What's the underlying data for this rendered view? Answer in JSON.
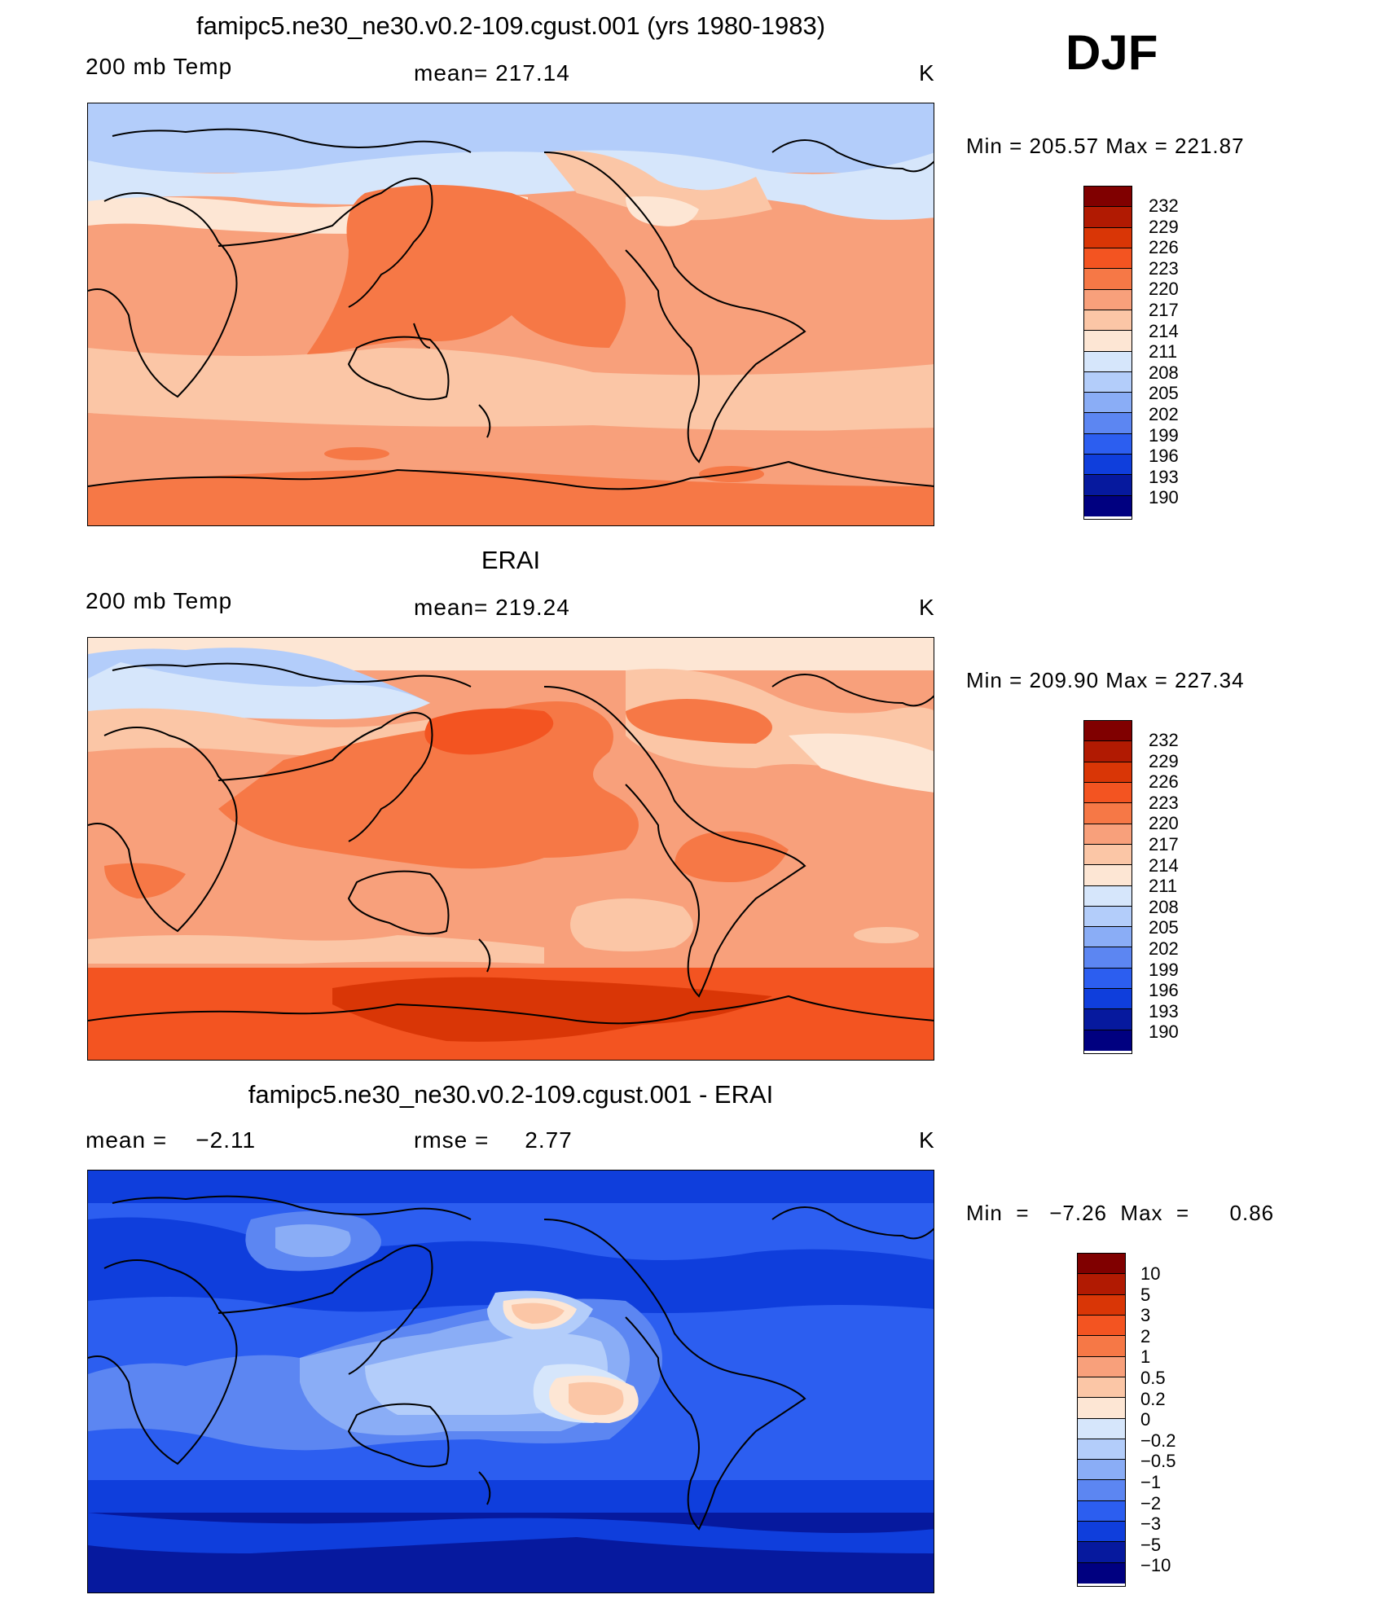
{
  "season": "DJF",
  "panels": [
    {
      "id": "model",
      "title": "famipc5.ne30_ne30.v0.2-109.cgust.001 (yrs 1980-1983)",
      "left_label": "200 mb Temp",
      "center_label": "mean= 217.14",
      "units": "K",
      "min_max": "Min  =  205.57  Max  =  221.87",
      "colorbar": [
        "232",
        "229",
        "226",
        "223",
        "220",
        "217",
        "214",
        "211",
        "208",
        "205",
        "202",
        "199",
        "196",
        "193",
        "190"
      ]
    },
    {
      "id": "obs",
      "title": "ERAI",
      "left_label": "200 mb Temp",
      "center_label": "mean= 219.24",
      "units": "K",
      "min_max": "Min  =  209.90  Max  =  227.34",
      "colorbar": [
        "232",
        "229",
        "226",
        "223",
        "220",
        "217",
        "214",
        "211",
        "208",
        "205",
        "202",
        "199",
        "196",
        "193",
        "190"
      ]
    },
    {
      "id": "diff",
      "title": "famipc5.ne30_ne30.v0.2-109.cgust.001 - ERAI",
      "left_label": "mean =    −2.11",
      "center_label": "rmse =     2.77",
      "units": "K",
      "min_max": "Min  =   −7.26  Max  =      0.86",
      "colorbar": [
        "10",
        "5",
        "3",
        "2",
        "1",
        "0.5",
        "0.2",
        "0",
        "−0.2",
        "−0.5",
        "−1",
        "−2",
        "−3",
        "−5",
        "−10"
      ]
    }
  ],
  "colors": {
    "scale": [
      "#800000",
      "#b11a02",
      "#d93606",
      "#f35421",
      "#f67846",
      "#f8a07b",
      "#fbc6a6",
      "#fde6d4",
      "#d6e6fb",
      "#b3cdfa",
      "#8aadf6",
      "#5c86f2",
      "#2c5ef0",
      "#0f3edc",
      "#06199e",
      "#000080"
    ]
  }
}
